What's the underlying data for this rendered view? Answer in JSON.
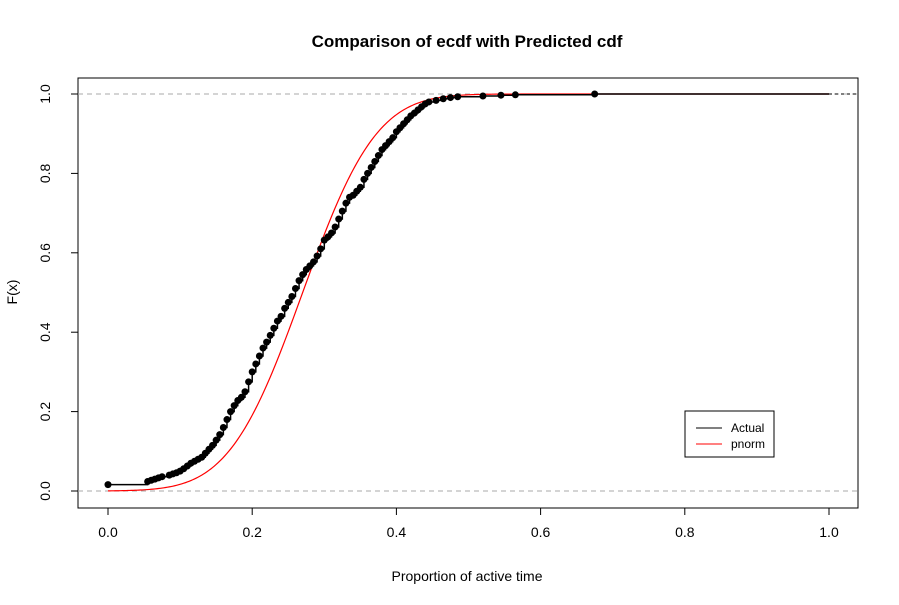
{
  "chart_data": {
    "type": "line",
    "title": "Comparison of ecdf with Predicted cdf",
    "xlabel": "Proportion of active time",
    "ylabel": "F(x)",
    "xlim": [
      0,
      1
    ],
    "ylim": [
      0,
      1
    ],
    "x_ticks": [
      "0.0",
      "0.2",
      "0.4",
      "0.6",
      "0.8",
      "1.0"
    ],
    "y_ticks": [
      "0.0",
      "0.2",
      "0.4",
      "0.6",
      "0.8",
      "1.0"
    ],
    "reference_lines_y": [
      0,
      1
    ],
    "legend_position": "bottom-right",
    "grid": false,
    "series": [
      {
        "name": "Actual",
        "color": "#000000",
        "style": "step-with-points",
        "x": [
          0.0,
          0.055,
          0.06,
          0.065,
          0.07,
          0.075,
          0.085,
          0.09,
          0.095,
          0.1,
          0.105,
          0.11,
          0.115,
          0.12,
          0.125,
          0.13,
          0.135,
          0.14,
          0.145,
          0.15,
          0.155,
          0.16,
          0.165,
          0.17,
          0.175,
          0.18,
          0.185,
          0.19,
          0.195,
          0.2,
          0.205,
          0.21,
          0.215,
          0.22,
          0.225,
          0.23,
          0.235,
          0.24,
          0.245,
          0.25,
          0.255,
          0.26,
          0.265,
          0.27,
          0.275,
          0.28,
          0.285,
          0.29,
          0.295,
          0.3,
          0.305,
          0.31,
          0.315,
          0.32,
          0.325,
          0.33,
          0.335,
          0.34,
          0.345,
          0.35,
          0.355,
          0.36,
          0.365,
          0.37,
          0.375,
          0.38,
          0.385,
          0.39,
          0.395,
          0.4,
          0.405,
          0.41,
          0.415,
          0.42,
          0.425,
          0.43,
          0.435,
          0.44,
          0.445,
          0.455,
          0.465,
          0.475,
          0.485,
          0.52,
          0.545,
          0.565,
          0.675
        ],
        "y": [
          0.016,
          0.024,
          0.027,
          0.03,
          0.033,
          0.036,
          0.04,
          0.043,
          0.046,
          0.05,
          0.056,
          0.063,
          0.07,
          0.075,
          0.08,
          0.085,
          0.095,
          0.105,
          0.115,
          0.128,
          0.142,
          0.16,
          0.18,
          0.2,
          0.215,
          0.228,
          0.236,
          0.25,
          0.275,
          0.3,
          0.32,
          0.34,
          0.36,
          0.375,
          0.392,
          0.41,
          0.428,
          0.44,
          0.46,
          0.475,
          0.49,
          0.51,
          0.53,
          0.545,
          0.558,
          0.567,
          0.577,
          0.592,
          0.61,
          0.632,
          0.64,
          0.65,
          0.665,
          0.685,
          0.705,
          0.725,
          0.74,
          0.745,
          0.755,
          0.765,
          0.785,
          0.8,
          0.815,
          0.83,
          0.845,
          0.86,
          0.87,
          0.88,
          0.89,
          0.905,
          0.915,
          0.925,
          0.935,
          0.945,
          0.952,
          0.96,
          0.968,
          0.975,
          0.98,
          0.984,
          0.988,
          0.991,
          0.993,
          0.995,
          0.997,
          0.998,
          1.0
        ]
      },
      {
        "name": "pnorm",
        "color": "#ff0000",
        "style": "line",
        "mean": 0.27,
        "sd": 0.08
      }
    ]
  }
}
